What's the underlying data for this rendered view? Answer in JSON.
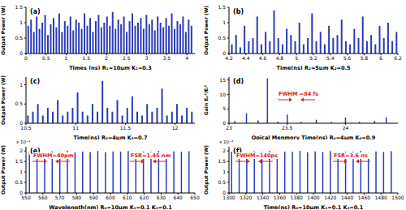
{
  "chart_data": [
    {
      "type": "bar",
      "label": "(a)",
      "x_label": "Times (ns) R₁=10μm K₁=0.3",
      "y_label": "Output Power (W)",
      "color": "#2a3cb5",
      "x": [
        0.05,
        0.12,
        0.19,
        0.26,
        0.33,
        0.4,
        0.47,
        0.54,
        0.61,
        0.68,
        0.75,
        0.82,
        0.89,
        0.96,
        1.03,
        1.1,
        1.17,
        1.24,
        1.31,
        1.38,
        1.45,
        1.52,
        1.59,
        1.66,
        1.73,
        1.8,
        1.87,
        1.94,
        2.01,
        2.08,
        2.15,
        2.22,
        2.29,
        2.36,
        2.43,
        2.5,
        2.57,
        2.64,
        2.71,
        2.78,
        2.85,
        2.92,
        2.99,
        3.06,
        3.13,
        3.2,
        3.27,
        3.34,
        3.41,
        3.48,
        3.55,
        3.62,
        3.69,
        3.76,
        3.83,
        3.9,
        3.97,
        4.04,
        4.11
      ],
      "values": [
        0.9,
        1.1,
        0.7,
        1.2,
        0.8,
        1.0,
        1.25,
        0.6,
        0.95,
        1.15,
        0.85,
        1.3,
        0.7,
        1.05,
        0.9,
        1.2,
        0.75,
        1.1,
        1.0,
        0.8,
        1.3,
        0.9,
        1.15,
        0.7,
        1.05,
        1.25,
        0.85,
        1.0,
        1.2,
        0.9,
        1.35,
        0.8,
        1.1,
        0.95,
        1.2,
        0.7,
        1.05,
        1.3,
        0.9,
        1.0,
        1.15,
        0.8,
        1.25,
        0.95,
        1.1,
        0.75,
        1.2,
        1.0,
        0.85,
        1.15,
        0.9,
        1.3,
        0.8,
        1.05,
        0.95,
        1.2,
        0.7,
        1.1,
        0.9
      ],
      "xlim": [
        0,
        4.2
      ],
      "xticks": [
        0,
        0.5,
        1,
        1.5,
        2,
        2.5,
        3,
        3.5,
        4
      ],
      "ylim": [
        0,
        1.5
      ],
      "yticks": [
        0,
        0.5,
        1,
        1.5
      ]
    },
    {
      "type": "bar",
      "label": "(b)",
      "x_label": "Time(ns) R₂=5μm K₂=0.5",
      "y_label": "Output Power (W)",
      "color": "#2a3cb5",
      "x": [
        4.23,
        4.28,
        4.33,
        4.38,
        4.43,
        4.48,
        4.53,
        4.58,
        4.63,
        4.68,
        4.73,
        4.78,
        4.83,
        4.88,
        4.93,
        4.98,
        5.03,
        5.08,
        5.13,
        5.18,
        5.23,
        5.28,
        5.33,
        5.38,
        5.43,
        5.48,
        5.53,
        5.58,
        5.63,
        5.68,
        5.73,
        5.78,
        5.83,
        5.88,
        5.93,
        5.98,
        6.03,
        6.08,
        6.13,
        6.18
      ],
      "values": [
        0.3,
        0.6,
        0.2,
        0.9,
        0.4,
        0.5,
        1.2,
        0.3,
        0.7,
        0.4,
        1.4,
        0.5,
        0.3,
        0.8,
        0.6,
        0.4,
        1.0,
        0.3,
        0.5,
        1.3,
        0.4,
        0.7,
        0.3,
        0.9,
        0.5,
        0.6,
        1.1,
        0.4,
        0.3,
        0.8,
        0.5,
        1.2,
        0.4,
        0.6,
        0.3,
        0.9,
        0.5,
        1.0,
        0.4,
        0.7
      ],
      "xlim": [
        4.2,
        6.2
      ],
      "xticks": [
        4.2,
        4.4,
        4.6,
        4.8,
        5,
        5.2,
        5.4,
        5.6,
        5.8,
        6,
        6.2
      ],
      "ylim": [
        0,
        1.5
      ],
      "yticks": [
        0,
        0.5,
        1,
        1.5
      ]
    },
    {
      "type": "bar",
      "label": "(c)",
      "x_label": "Time(ns) R₃=4μm K₃=0.7",
      "y_label": "Output Power (W)",
      "color": "#2a3cb5",
      "x": [
        10.52,
        10.57,
        10.62,
        10.67,
        10.72,
        10.77,
        10.82,
        10.87,
        10.92,
        10.97,
        11.02,
        11.07,
        11.12,
        11.17,
        11.22,
        11.27,
        11.32,
        11.37,
        11.42,
        11.47,
        11.52,
        11.57,
        11.62,
        11.67,
        11.72,
        11.77,
        11.82,
        11.87,
        11.92,
        11.97,
        12.02,
        12.07,
        12.12,
        12.17
      ],
      "values": [
        0.2,
        0.3,
        0.5,
        0.2,
        0.4,
        0.3,
        0.6,
        0.2,
        0.3,
        0.4,
        0.8,
        0.3,
        0.2,
        0.5,
        0.3,
        1.1,
        0.4,
        0.3,
        0.6,
        0.2,
        0.4,
        0.7,
        0.3,
        0.2,
        0.5,
        0.3,
        0.4,
        0.9,
        0.2,
        0.3,
        0.5,
        0.2,
        0.4,
        0.3
      ],
      "xlim": [
        10.5,
        12.2
      ],
      "xticks": [
        10.5,
        11,
        11.5,
        12
      ],
      "ylim": [
        0,
        1.2
      ],
      "yticks": [
        0,
        0.5,
        1
      ]
    },
    {
      "type": "bar",
      "label": "(d)",
      "x_label": "Opical Menmory Time(ns) R₄=4μm K₄=0.9",
      "y_label": "Gain Eₒ²/Eᵢ²",
      "color": "#2a3cb5",
      "x": [
        23.05,
        23.15,
        23.25,
        23.33,
        23.42,
        23.5,
        23.62,
        23.75,
        23.88,
        24.0,
        24.12,
        24.25,
        24.35
      ],
      "values": [
        0.8,
        3.5,
        1,
        15.5,
        0.6,
        3,
        0.5,
        1.2,
        0.4,
        2,
        0.5,
        0.8,
        2
      ],
      "xlim": [
        23,
        24.45
      ],
      "xticks": [
        23,
        23.5,
        24
      ],
      "ylim": [
        0,
        16
      ],
      "yticks": [
        0,
        5,
        10,
        15
      ],
      "annotations": [
        "FWHM =84 fs"
      ]
    },
    {
      "type": "bar",
      "label": "(e)",
      "x_label": "Wavelength(nm) R₀=10μm K₁=0.1 K₂=0.1",
      "y_label": "Output Power (W)",
      "color": "#2a3cb5",
      "y_multiplier": "x 10⁻⁴",
      "x": [
        552,
        556.5,
        561,
        565.5,
        570,
        574.5,
        579,
        583.5,
        588,
        592.5,
        597,
        601.5,
        606,
        610.5,
        615,
        619.5,
        624,
        628.5,
        633,
        637.5,
        642,
        646.5
      ],
      "values": [
        0.000195,
        0.0002,
        0.000192,
        0.000198,
        0.000195,
        0.0002,
        0.000193,
        0.000197,
        0.000195,
        0.0002,
        0.000194,
        0.000198,
        0.000196,
        0.0002,
        0.000193,
        0.000197,
        0.000195,
        0.0002,
        0.000194,
        0.000198,
        0.000196,
        0.000199
      ],
      "xlim": [
        550,
        650
      ],
      "xticks": [
        550,
        560,
        570,
        580,
        590,
        600,
        610,
        620,
        630,
        640,
        650
      ],
      "ylim": [
        0,
        0.00022
      ],
      "yticks": [
        {
          "value": 0,
          "label": "0"
        },
        {
          "value": 5e-05,
          "label": "0.5"
        },
        {
          "value": 0.0001,
          "label": "1"
        },
        {
          "value": 0.00015,
          "label": "1.5"
        },
        {
          "value": 0.0002,
          "label": "2"
        }
      ],
      "annotations": [
        "FWHM=40pm",
        "FSR=1.45 nm"
      ]
    },
    {
      "type": "bar",
      "label": "(f)",
      "x_label": "Time(ns) R₀=10μm K₁=0.1 K₂=0.1",
      "y_label": "Output Power (W)",
      "color": "#2a3cb5",
      "y_multiplier": "x 10⁻⁴",
      "x": [
        1303,
        1312,
        1321,
        1330,
        1339,
        1348,
        1357,
        1366,
        1375,
        1384,
        1393,
        1402,
        1411,
        1420,
        1429,
        1438,
        1447,
        1456,
        1465,
        1474,
        1483,
        1492
      ],
      "values": [
        0.000196,
        0.0002,
        0.000194,
        0.000198,
        0.000195,
        0.0002,
        0.000193,
        0.000197,
        0.000196,
        0.0002,
        0.000194,
        0.000198,
        0.000195,
        0.0002,
        0.000193,
        0.000197,
        0.000196,
        0.0002,
        0.000194,
        0.000198,
        0.000195,
        0.000199
      ],
      "xlim": [
        1300,
        1500
      ],
      "xticks": [
        1300,
        1320,
        1340,
        1360,
        1380,
        1400,
        1420,
        1440,
        1460,
        1480,
        1500
      ],
      "ylim": [
        0,
        0.00022
      ],
      "yticks": [
        {
          "value": 0,
          "label": "0"
        },
        {
          "value": 5e-05,
          "label": "0.5"
        },
        {
          "value": 0.0001,
          "label": "1"
        },
        {
          "value": 0.00015,
          "label": "1.5"
        },
        {
          "value": 0.0002,
          "label": "2"
        }
      ],
      "annotations": [
        "FWHM=140ps",
        "FSR=3.6 ns"
      ]
    }
  ]
}
